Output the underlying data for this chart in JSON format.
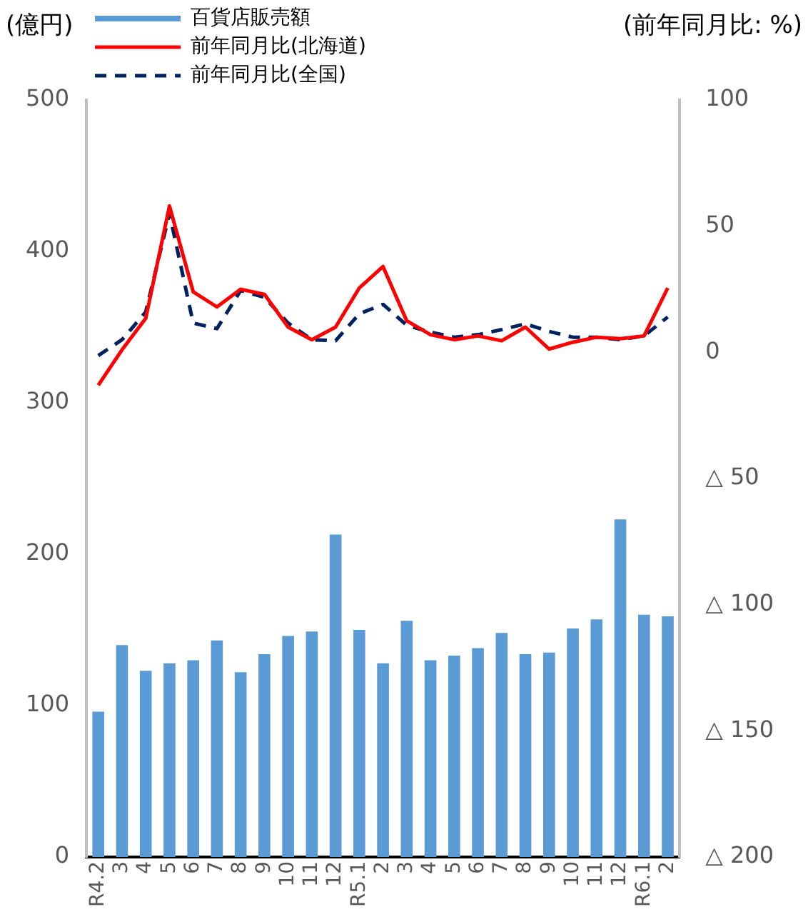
{
  "chart_data": {
    "type": "bar",
    "ylabel": "(億円)",
    "y2label": "(前年同月比: %)",
    "categories": [
      "R4.2",
      "3",
      "4",
      "5",
      "6",
      "7",
      "8",
      "9",
      "10",
      "11",
      "12",
      "R5.1",
      "2",
      "3",
      "4",
      "5",
      "6",
      "7",
      "8",
      "9",
      "10",
      "11",
      "12",
      "R6.1",
      "2"
    ],
    "series": [
      {
        "name": "百貨店販売額",
        "color": "#5b9bd5",
        "values": [
          96,
          140,
          123,
          128,
          130,
          143,
          122,
          134,
          146,
          149,
          213,
          150,
          128,
          156,
          130,
          133,
          138,
          148,
          134,
          135,
          151,
          157,
          223,
          160,
          159
        ]
      },
      {
        "name": "前年同月比(北海道)",
        "type": "line",
        "axis": "y2",
        "color": "#ff0000",
        "line_style": "solid",
        "values": [
          -13,
          1,
          13.5,
          58,
          24,
          18,
          25,
          23,
          10,
          5,
          10,
          25.5,
          34,
          12.5,
          7,
          5,
          6.5,
          4.6,
          10,
          1.3,
          4,
          6,
          5.4,
          6.5,
          25.5
        ]
      },
      {
        "name": "前年同月比(全国)",
        "type": "line",
        "axis": "y2",
        "color": "#002060",
        "line_style": "dashed",
        "values": [
          -1.3,
          5,
          16,
          55,
          11.6,
          9.4,
          24.5,
          21.8,
          11.6,
          5,
          4.6,
          15.3,
          19,
          10.7,
          8,
          6,
          7,
          9,
          11.3,
          8.3,
          6,
          6,
          5,
          6.5,
          14
        ]
      }
    ],
    "ylim": [
      0,
      500
    ],
    "yticks": [
      0,
      100,
      200,
      300,
      400,
      500
    ],
    "y2lim": [
      -200,
      100
    ],
    "y2ticks": [
      {
        "value": -200,
        "label": "△ 200"
      },
      {
        "value": -150,
        "label": "△ 150"
      },
      {
        "value": -100,
        "label": "△ 100"
      },
      {
        "value": -50,
        "label": "△ 50"
      },
      0,
      50,
      100
    ],
    "grid": false,
    "legend": "top left",
    "marker": "none"
  }
}
